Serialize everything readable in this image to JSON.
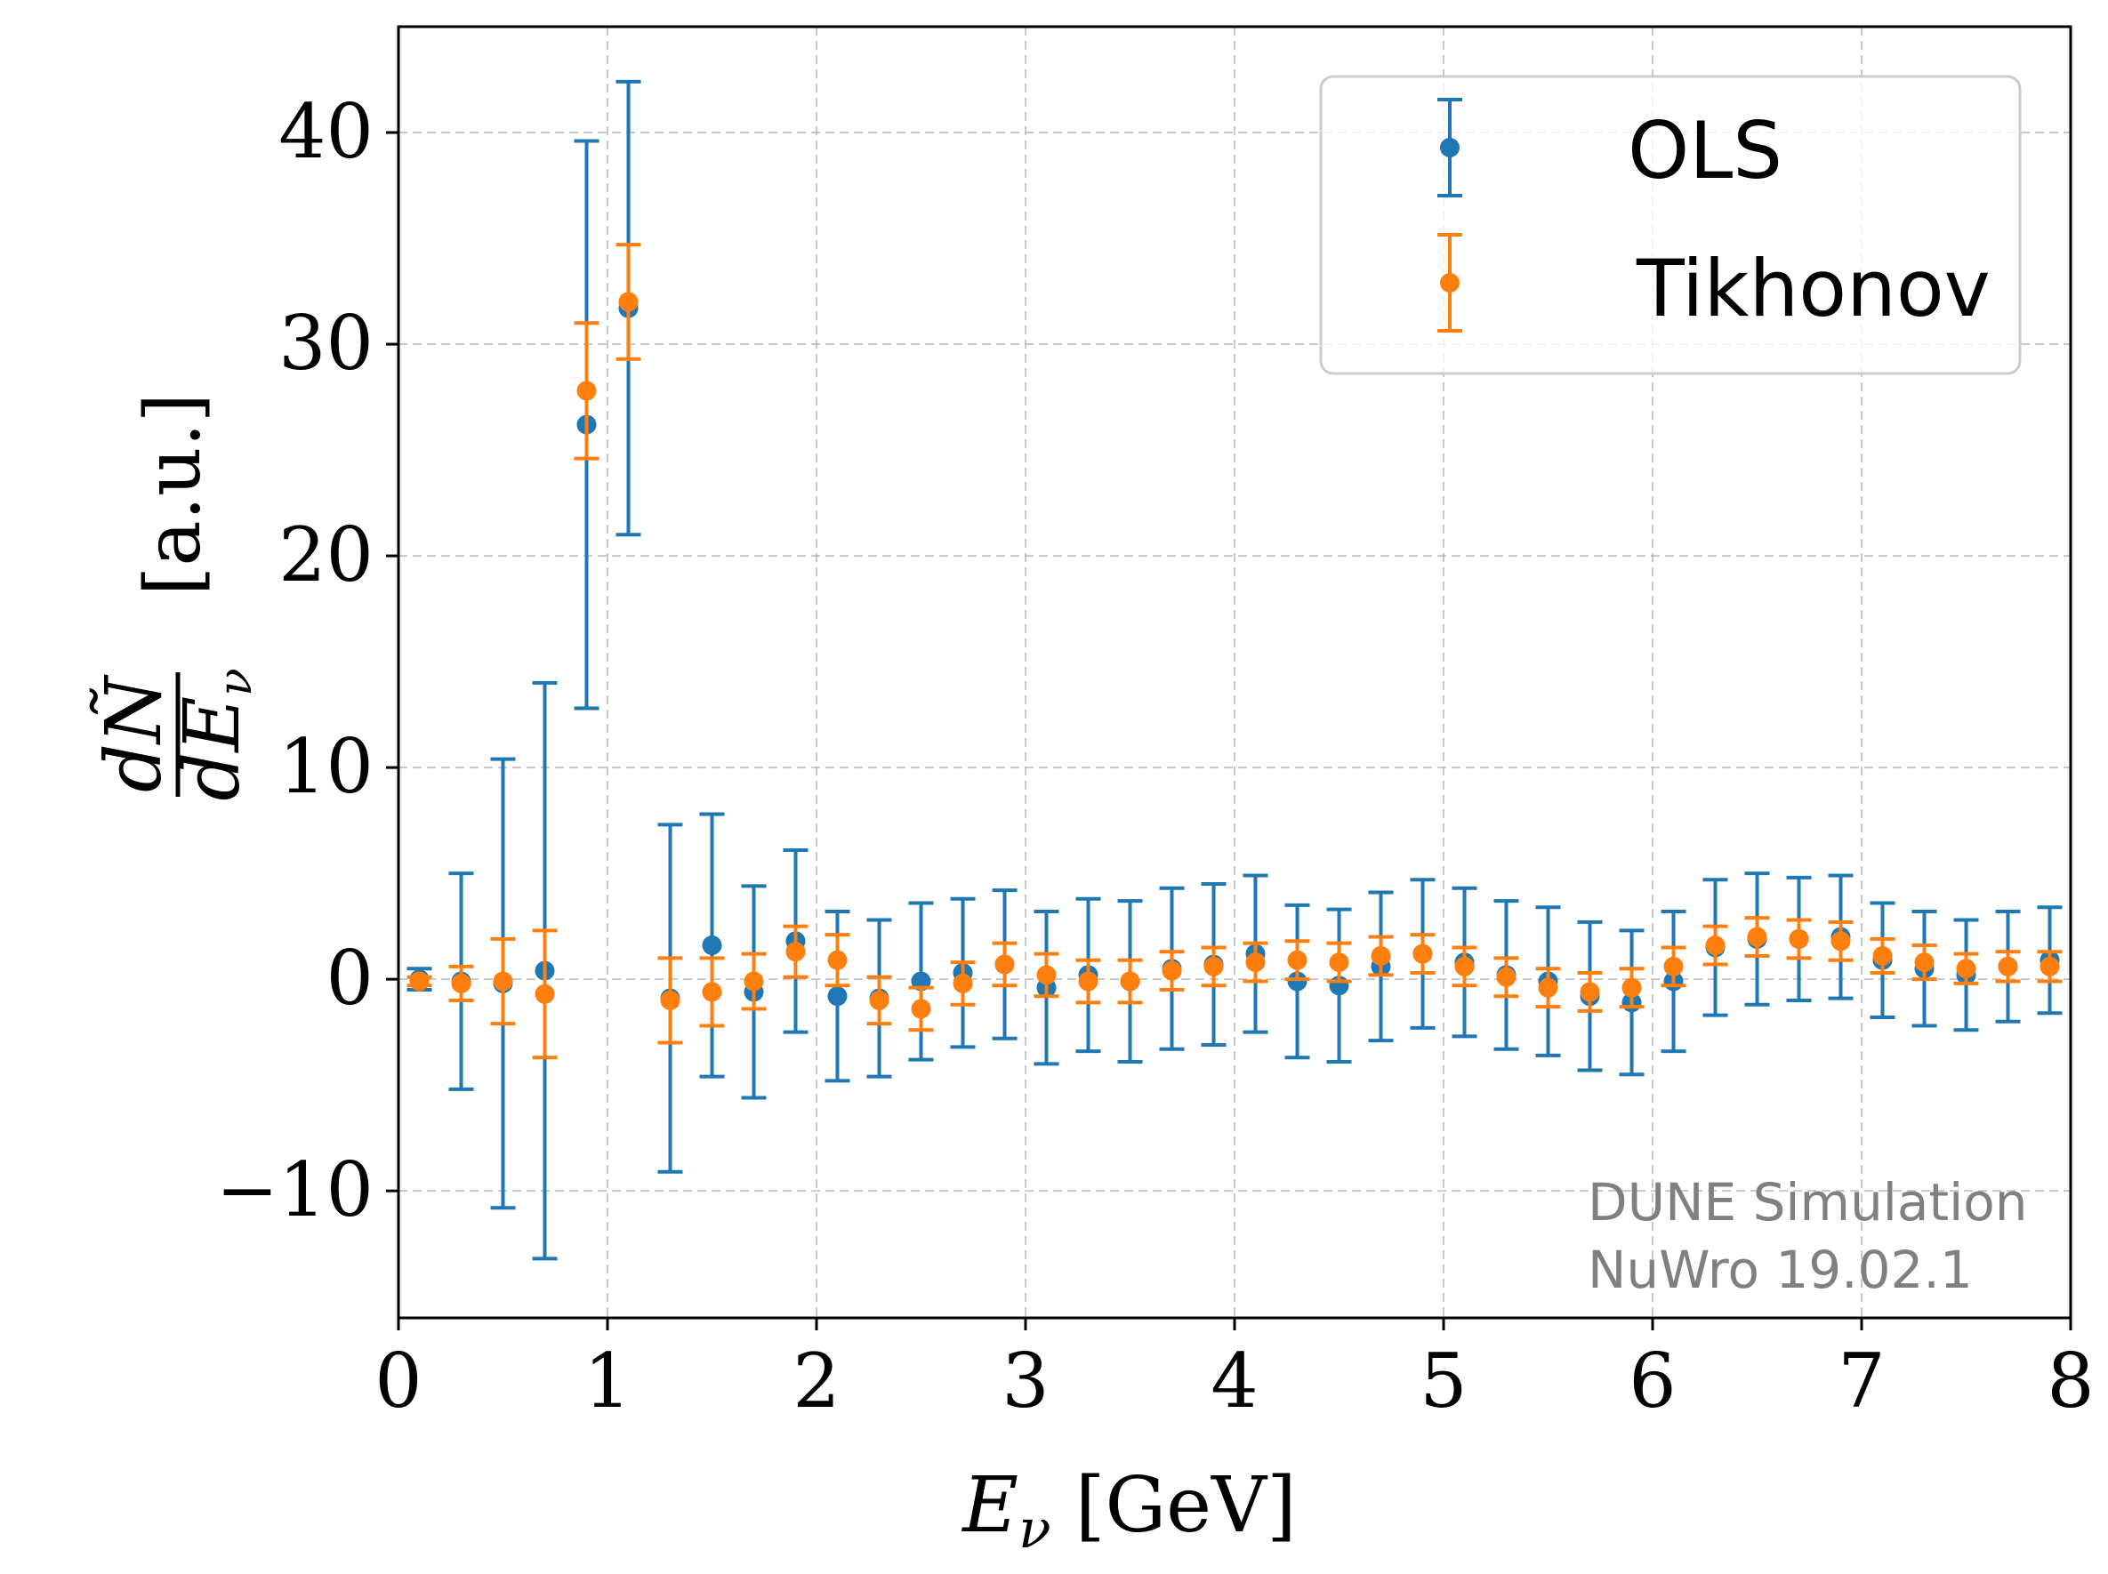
{
  "chart_data": {
    "type": "scatter",
    "xlabel": "E_ν [GeV]",
    "ylabel": "dÑ/dE_ν [a.u.]",
    "xlim": [
      0,
      8
    ],
    "ylim": [
      -16,
      45
    ],
    "xticks": [
      "0",
      "1",
      "2",
      "3",
      "4",
      "5",
      "6",
      "7",
      "8"
    ],
    "yticks": [
      "−10",
      "0",
      "10",
      "20",
      "30",
      "40"
    ],
    "grid": true,
    "legend_position": "top-right",
    "annotations": [
      "DUNE Simulation",
      "NuWro 19.02.1"
    ],
    "series": [
      {
        "name": "OLS",
        "color": "#1f77b4",
        "x": [
          0.1,
          0.3,
          0.5,
          0.7,
          0.9,
          1.1,
          1.3,
          1.5,
          1.7,
          1.9,
          2.1,
          2.3,
          2.5,
          2.7,
          2.9,
          3.1,
          3.3,
          3.5,
          3.7,
          3.9,
          4.1,
          4.3,
          4.5,
          4.7,
          4.9,
          5.1,
          5.3,
          5.5,
          5.7,
          5.9,
          6.1,
          6.3,
          6.5,
          6.7,
          6.9,
          7.1,
          7.3,
          7.5,
          7.7,
          7.9
        ],
        "y": [
          0.0,
          -0.1,
          -0.2,
          0.4,
          26.2,
          31.7,
          -0.9,
          1.6,
          -0.6,
          1.8,
          -0.8,
          -0.9,
          -0.1,
          0.3,
          0.7,
          -0.4,
          0.2,
          -0.1,
          0.5,
          0.7,
          1.2,
          -0.1,
          -0.3,
          0.6,
          1.2,
          0.8,
          0.2,
          -0.1,
          -0.8,
          -1.1,
          -0.1,
          1.5,
          1.9,
          1.9,
          2.0,
          0.9,
          0.5,
          0.2,
          0.6,
          0.9
        ],
        "yerr": [
          0.5,
          5.1,
          10.6,
          13.6,
          13.4,
          10.7,
          8.2,
          6.2,
          5.0,
          4.3,
          4.0,
          3.7,
          3.7,
          3.5,
          3.5,
          3.6,
          3.6,
          3.8,
          3.8,
          3.8,
          3.7,
          3.6,
          3.6,
          3.5,
          3.5,
          3.5,
          3.5,
          3.5,
          3.5,
          3.4,
          3.3,
          3.2,
          3.1,
          2.9,
          2.9,
          2.7,
          2.7,
          2.6,
          2.6,
          2.5
        ]
      },
      {
        "name": "Tikhonov",
        "color": "#ff7f0e",
        "x": [
          0.1,
          0.3,
          0.5,
          0.7,
          0.9,
          1.1,
          1.3,
          1.5,
          1.7,
          1.9,
          2.1,
          2.3,
          2.5,
          2.7,
          2.9,
          3.1,
          3.3,
          3.5,
          3.7,
          3.9,
          4.1,
          4.3,
          4.5,
          4.7,
          4.9,
          5.1,
          5.3,
          5.5,
          5.7,
          5.9,
          6.1,
          6.3,
          6.5,
          6.7,
          6.9,
          7.1,
          7.3,
          7.5,
          7.7,
          7.9
        ],
        "y": [
          -0.1,
          -0.2,
          -0.1,
          -0.7,
          27.8,
          32.0,
          -1.0,
          -0.6,
          -0.1,
          1.3,
          0.9,
          -1.0,
          -1.4,
          -0.2,
          0.7,
          0.2,
          -0.1,
          -0.1,
          0.4,
          0.6,
          0.8,
          0.9,
          0.8,
          1.1,
          1.2,
          0.6,
          0.1,
          -0.4,
          -0.6,
          -0.4,
          0.6,
          1.6,
          2.0,
          1.9,
          1.8,
          1.1,
          0.8,
          0.5,
          0.6,
          0.6
        ],
        "yerr": [
          0.2,
          0.8,
          2.0,
          3.0,
          3.2,
          2.7,
          2.0,
          1.6,
          1.3,
          1.2,
          1.2,
          1.1,
          1.0,
          1.0,
          1.0,
          1.0,
          1.0,
          1.0,
          0.9,
          0.9,
          0.9,
          0.9,
          0.9,
          0.9,
          0.9,
          0.9,
          0.9,
          0.9,
          0.9,
          0.9,
          0.9,
          0.9,
          0.9,
          0.9,
          0.9,
          0.8,
          0.8,
          0.7,
          0.7,
          0.7
        ]
      }
    ]
  }
}
